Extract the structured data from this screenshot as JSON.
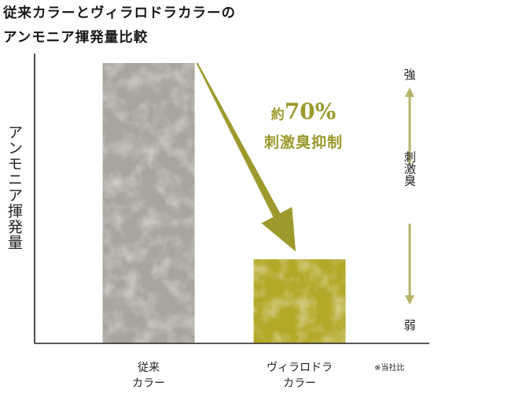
{
  "title": {
    "line1": "従来カラーとヴィラロドラカラーの",
    "line2": "アンモニア揮発量比較"
  },
  "chart_data": {
    "type": "bar",
    "title": "従来カラーとヴィラロドラカラーのアンモニア揮発量比較",
    "ylabel": "アンモニア揮発量",
    "categories": [
      {
        "line1": "従来",
        "line2": "カラー"
      },
      {
        "line1": "ヴィラロドラ",
        "line2": "カラー"
      }
    ],
    "values": [
      100,
      30
    ],
    "ylim": [
      0,
      100
    ],
    "grid": false,
    "bar_colors": [
      "#aaa59c",
      "#b3a828"
    ],
    "annotation": {
      "prefix": "約",
      "percent": "70%",
      "text": "刺激臭抑制",
      "color": "#9c9a2c"
    },
    "odor_scale": {
      "top": "強",
      "middle": "刺激臭",
      "bottom": "弱",
      "color": "#b5b26a"
    },
    "footnote": "※当社比"
  }
}
